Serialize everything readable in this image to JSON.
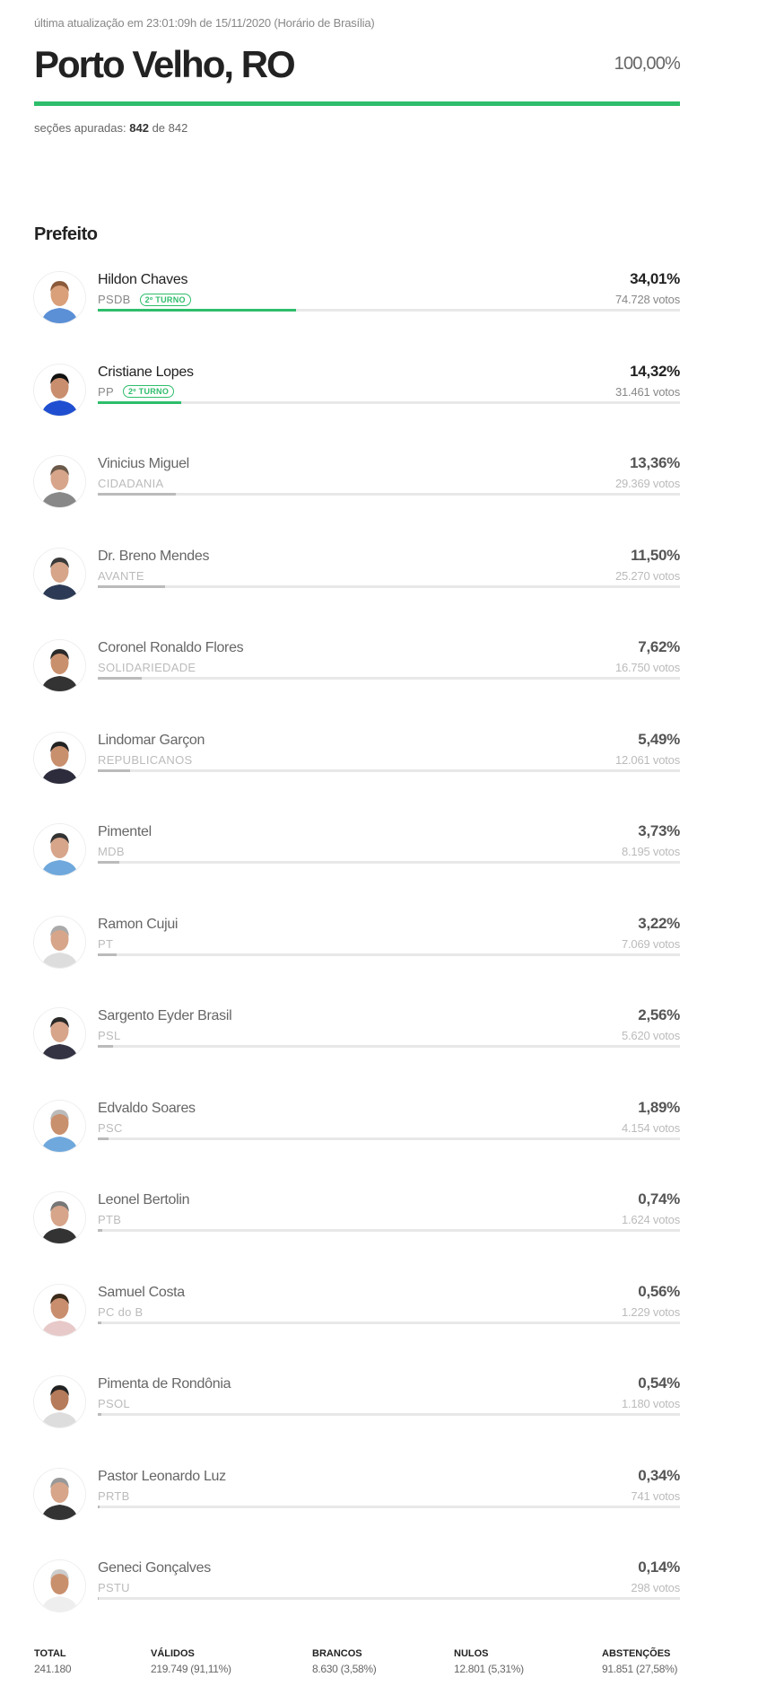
{
  "header": {
    "updated": "última atualização em 23:01:09h de 15/11/2020 (Horário de Brasília)",
    "city": "Porto Velho, RO",
    "percent_counted": "100,00%",
    "progress": 100,
    "sections_label": "seções apuradas:",
    "sections_counted": "842",
    "sections_of": "de 842",
    "progress_color": "#2ebd6b"
  },
  "office": "Prefeito",
  "badge_label": "2º TURNO",
  "candidates": [
    {
      "name": "Hildon Chaves",
      "party": "PSDB",
      "pct": "34,01%",
      "pct_value": 34.01,
      "votes": "74.728 votos",
      "second_round": true,
      "skin": "#d9a07a",
      "shirt": "#5b8fd6",
      "hair": "#8a5a3a"
    },
    {
      "name": "Cristiane Lopes",
      "party": "PP",
      "pct": "14,32%",
      "pct_value": 14.32,
      "votes": "31.461 votos",
      "second_round": true,
      "skin": "#c98e6e",
      "shirt": "#1f4fd0",
      "hair": "#111111"
    },
    {
      "name": "Vinicius Miguel",
      "party": "CIDADANIA",
      "pct": "13,36%",
      "pct_value": 13.36,
      "votes": "29.369 votos",
      "second_round": false,
      "skin": "#d6a58a",
      "shirt": "#888888",
      "hair": "#6b5a4a"
    },
    {
      "name": "Dr. Breno Mendes",
      "party": "AVANTE",
      "pct": "11,50%",
      "pct_value": 11.5,
      "votes": "25.270 votos",
      "second_round": false,
      "skin": "#d6a58a",
      "shirt": "#2c3a55",
      "hair": "#3a3a3a"
    },
    {
      "name": "Coronel Ronaldo Flores",
      "party": "SOLIDARIEDADE",
      "pct": "7,62%",
      "pct_value": 7.62,
      "votes": "16.750 votos",
      "second_round": false,
      "skin": "#c9906e",
      "shirt": "#333333",
      "hair": "#2a2a2a"
    },
    {
      "name": "Lindomar Garçon",
      "party": "REPUBLICANOS",
      "pct": "5,49%",
      "pct_value": 5.49,
      "votes": "12.061 votos",
      "second_round": false,
      "skin": "#c9906e",
      "shirt": "#2c2c3c",
      "hair": "#222222"
    },
    {
      "name": "Pimentel",
      "party": "MDB",
      "pct": "3,73%",
      "pct_value": 3.73,
      "votes": "8.195 votos",
      "second_round": false,
      "skin": "#d6a58a",
      "shirt": "#6fa8dc",
      "hair": "#333333"
    },
    {
      "name": "Ramon Cujui",
      "party": "PT",
      "pct": "3,22%",
      "pct_value": 3.22,
      "votes": "7.069 votos",
      "second_round": false,
      "skin": "#d6a58a",
      "shirt": "#dddddd",
      "hair": "#aaaaaa"
    },
    {
      "name": "Sargento Eyder Brasil",
      "party": "PSL",
      "pct": "2,56%",
      "pct_value": 2.56,
      "votes": "5.620 votos",
      "second_round": false,
      "skin": "#d6a58a",
      "shirt": "#333344",
      "hair": "#2a2a2a"
    },
    {
      "name": "Edvaldo Soares",
      "party": "PSC",
      "pct": "1,89%",
      "pct_value": 1.89,
      "votes": "4.154 votos",
      "second_round": false,
      "skin": "#c9906e",
      "shirt": "#6fa8dc",
      "hair": "#bbbbbb"
    },
    {
      "name": "Leonel Bertolin",
      "party": "PTB",
      "pct": "0,74%",
      "pct_value": 0.74,
      "votes": "1.624 votos",
      "second_round": false,
      "skin": "#d6a58a",
      "shirt": "#333333",
      "hair": "#777777"
    },
    {
      "name": "Samuel Costa",
      "party": "PC do B",
      "pct": "0,56%",
      "pct_value": 0.56,
      "votes": "1.229 votos",
      "second_round": false,
      "skin": "#c98e6e",
      "shirt": "#e8c9c9",
      "hair": "#3a2a1a"
    },
    {
      "name": "Pimenta de Rondônia",
      "party": "PSOL",
      "pct": "0,54%",
      "pct_value": 0.54,
      "votes": "1.180 votos",
      "second_round": false,
      "skin": "#b57b5a",
      "shirt": "#dddddd",
      "hair": "#222222"
    },
    {
      "name": "Pastor Leonardo Luz",
      "party": "PRTB",
      "pct": "0,34%",
      "pct_value": 0.34,
      "votes": "741 votos",
      "second_round": false,
      "skin": "#d6a58a",
      "shirt": "#333333",
      "hair": "#999999"
    },
    {
      "name": "Geneci Gonçalves",
      "party": "PSTU",
      "pct": "0,14%",
      "pct_value": 0.14,
      "votes": "298 votos",
      "second_round": false,
      "skin": "#c9906e",
      "shirt": "#eeeeee",
      "hair": "#cccccc"
    }
  ],
  "summary": [
    {
      "label": "TOTAL",
      "value": "241.180"
    },
    {
      "label": "VÁLIDOS",
      "value": "219.749 (91,11%)"
    },
    {
      "label": "BRANCOS",
      "value": "8.630 (3,58%)"
    },
    {
      "label": "NULOS",
      "value": "12.801 (5,31%)"
    },
    {
      "label": "ABSTENÇÕES",
      "value": "91.851 (27,58%)"
    }
  ]
}
